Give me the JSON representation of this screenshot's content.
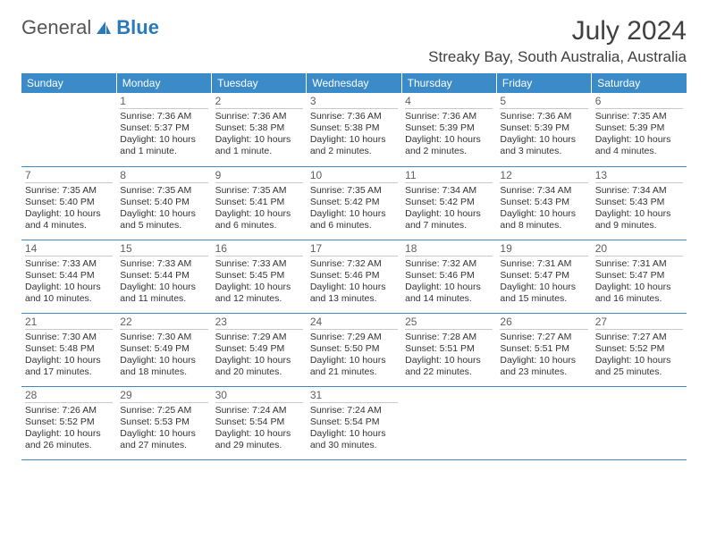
{
  "logo": {
    "text1": "General",
    "text2": "Blue"
  },
  "title": "July 2024",
  "location": "Streaky Bay, South Australia, Australia",
  "day_headers": [
    "Sunday",
    "Monday",
    "Tuesday",
    "Wednesday",
    "Thursday",
    "Friday",
    "Saturday"
  ],
  "colors": {
    "header_bg": "#3b8bc8",
    "header_text": "#ffffff",
    "border": "#3b8bc8",
    "text": "#333333"
  },
  "weeks": [
    [
      {
        "day": "",
        "sunrise": "",
        "sunset": "",
        "daylight": ""
      },
      {
        "day": "1",
        "sunrise": "Sunrise: 7:36 AM",
        "sunset": "Sunset: 5:37 PM",
        "daylight": "Daylight: 10 hours and 1 minute."
      },
      {
        "day": "2",
        "sunrise": "Sunrise: 7:36 AM",
        "sunset": "Sunset: 5:38 PM",
        "daylight": "Daylight: 10 hours and 1 minute."
      },
      {
        "day": "3",
        "sunrise": "Sunrise: 7:36 AM",
        "sunset": "Sunset: 5:38 PM",
        "daylight": "Daylight: 10 hours and 2 minutes."
      },
      {
        "day": "4",
        "sunrise": "Sunrise: 7:36 AM",
        "sunset": "Sunset: 5:39 PM",
        "daylight": "Daylight: 10 hours and 2 minutes."
      },
      {
        "day": "5",
        "sunrise": "Sunrise: 7:36 AM",
        "sunset": "Sunset: 5:39 PM",
        "daylight": "Daylight: 10 hours and 3 minutes."
      },
      {
        "day": "6",
        "sunrise": "Sunrise: 7:35 AM",
        "sunset": "Sunset: 5:39 PM",
        "daylight": "Daylight: 10 hours and 4 minutes."
      }
    ],
    [
      {
        "day": "7",
        "sunrise": "Sunrise: 7:35 AM",
        "sunset": "Sunset: 5:40 PM",
        "daylight": "Daylight: 10 hours and 4 minutes."
      },
      {
        "day": "8",
        "sunrise": "Sunrise: 7:35 AM",
        "sunset": "Sunset: 5:40 PM",
        "daylight": "Daylight: 10 hours and 5 minutes."
      },
      {
        "day": "9",
        "sunrise": "Sunrise: 7:35 AM",
        "sunset": "Sunset: 5:41 PM",
        "daylight": "Daylight: 10 hours and 6 minutes."
      },
      {
        "day": "10",
        "sunrise": "Sunrise: 7:35 AM",
        "sunset": "Sunset: 5:42 PM",
        "daylight": "Daylight: 10 hours and 6 minutes."
      },
      {
        "day": "11",
        "sunrise": "Sunrise: 7:34 AM",
        "sunset": "Sunset: 5:42 PM",
        "daylight": "Daylight: 10 hours and 7 minutes."
      },
      {
        "day": "12",
        "sunrise": "Sunrise: 7:34 AM",
        "sunset": "Sunset: 5:43 PM",
        "daylight": "Daylight: 10 hours and 8 minutes."
      },
      {
        "day": "13",
        "sunrise": "Sunrise: 7:34 AM",
        "sunset": "Sunset: 5:43 PM",
        "daylight": "Daylight: 10 hours and 9 minutes."
      }
    ],
    [
      {
        "day": "14",
        "sunrise": "Sunrise: 7:33 AM",
        "sunset": "Sunset: 5:44 PM",
        "daylight": "Daylight: 10 hours and 10 minutes."
      },
      {
        "day": "15",
        "sunrise": "Sunrise: 7:33 AM",
        "sunset": "Sunset: 5:44 PM",
        "daylight": "Daylight: 10 hours and 11 minutes."
      },
      {
        "day": "16",
        "sunrise": "Sunrise: 7:33 AM",
        "sunset": "Sunset: 5:45 PM",
        "daylight": "Daylight: 10 hours and 12 minutes."
      },
      {
        "day": "17",
        "sunrise": "Sunrise: 7:32 AM",
        "sunset": "Sunset: 5:46 PM",
        "daylight": "Daylight: 10 hours and 13 minutes."
      },
      {
        "day": "18",
        "sunrise": "Sunrise: 7:32 AM",
        "sunset": "Sunset: 5:46 PM",
        "daylight": "Daylight: 10 hours and 14 minutes."
      },
      {
        "day": "19",
        "sunrise": "Sunrise: 7:31 AM",
        "sunset": "Sunset: 5:47 PM",
        "daylight": "Daylight: 10 hours and 15 minutes."
      },
      {
        "day": "20",
        "sunrise": "Sunrise: 7:31 AM",
        "sunset": "Sunset: 5:47 PM",
        "daylight": "Daylight: 10 hours and 16 minutes."
      }
    ],
    [
      {
        "day": "21",
        "sunrise": "Sunrise: 7:30 AM",
        "sunset": "Sunset: 5:48 PM",
        "daylight": "Daylight: 10 hours and 17 minutes."
      },
      {
        "day": "22",
        "sunrise": "Sunrise: 7:30 AM",
        "sunset": "Sunset: 5:49 PM",
        "daylight": "Daylight: 10 hours and 18 minutes."
      },
      {
        "day": "23",
        "sunrise": "Sunrise: 7:29 AM",
        "sunset": "Sunset: 5:49 PM",
        "daylight": "Daylight: 10 hours and 20 minutes."
      },
      {
        "day": "24",
        "sunrise": "Sunrise: 7:29 AM",
        "sunset": "Sunset: 5:50 PM",
        "daylight": "Daylight: 10 hours and 21 minutes."
      },
      {
        "day": "25",
        "sunrise": "Sunrise: 7:28 AM",
        "sunset": "Sunset: 5:51 PM",
        "daylight": "Daylight: 10 hours and 22 minutes."
      },
      {
        "day": "26",
        "sunrise": "Sunrise: 7:27 AM",
        "sunset": "Sunset: 5:51 PM",
        "daylight": "Daylight: 10 hours and 23 minutes."
      },
      {
        "day": "27",
        "sunrise": "Sunrise: 7:27 AM",
        "sunset": "Sunset: 5:52 PM",
        "daylight": "Daylight: 10 hours and 25 minutes."
      }
    ],
    [
      {
        "day": "28",
        "sunrise": "Sunrise: 7:26 AM",
        "sunset": "Sunset: 5:52 PM",
        "daylight": "Daylight: 10 hours and 26 minutes."
      },
      {
        "day": "29",
        "sunrise": "Sunrise: 7:25 AM",
        "sunset": "Sunset: 5:53 PM",
        "daylight": "Daylight: 10 hours and 27 minutes."
      },
      {
        "day": "30",
        "sunrise": "Sunrise: 7:24 AM",
        "sunset": "Sunset: 5:54 PM",
        "daylight": "Daylight: 10 hours and 29 minutes."
      },
      {
        "day": "31",
        "sunrise": "Sunrise: 7:24 AM",
        "sunset": "Sunset: 5:54 PM",
        "daylight": "Daylight: 10 hours and 30 minutes."
      },
      {
        "day": "",
        "sunrise": "",
        "sunset": "",
        "daylight": ""
      },
      {
        "day": "",
        "sunrise": "",
        "sunset": "",
        "daylight": ""
      },
      {
        "day": "",
        "sunrise": "",
        "sunset": "",
        "daylight": ""
      }
    ]
  ]
}
